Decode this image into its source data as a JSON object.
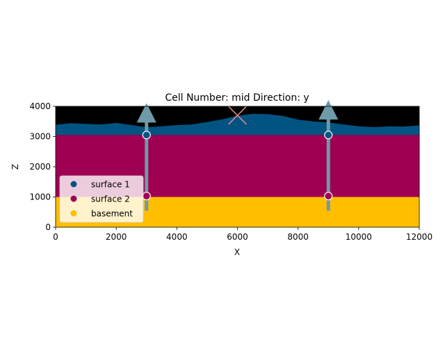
{
  "chart_data": {
    "type": "area",
    "title": "Cell Number: mid Direction: y",
    "xlabel": "X",
    "ylabel": "Z",
    "xlim": [
      0,
      12000
    ],
    "ylim": [
      0,
      4000
    ],
    "xticks": [
      0,
      2000,
      4000,
      6000,
      8000,
      10000,
      12000
    ],
    "yticks": [
      0,
      1000,
      2000,
      3000,
      4000
    ],
    "grid": false,
    "legend_position": "lower-left",
    "background_color": "#000000",
    "layers": [
      {
        "name": "surface 1",
        "color": "#015482",
        "bottom_z": 3050,
        "top_profile": {
          "x": [
            0,
            500,
            1000,
            1500,
            2000,
            2500,
            3000,
            3500,
            4000,
            4500,
            5000,
            5500,
            6000,
            6500,
            7000,
            7500,
            8000,
            8500,
            9000,
            9500,
            10000,
            10500,
            11000,
            11500,
            12000
          ],
          "z": [
            3390,
            3440,
            3420,
            3400,
            3450,
            3380,
            3310,
            3340,
            3380,
            3400,
            3480,
            3570,
            3690,
            3750,
            3740,
            3680,
            3560,
            3500,
            3470,
            3400,
            3340,
            3310,
            3340,
            3330,
            3370
          ]
        }
      },
      {
        "name": "surface 2",
        "color": "#9f0052",
        "bottom_z": 1000,
        "top_z": 3050
      },
      {
        "name": "basement",
        "color": "#ffbe00",
        "bottom_z": 0,
        "top_z": 1000
      }
    ],
    "wells": [
      {
        "x": 3000,
        "z_top": 3600,
        "z_bottom": 550
      },
      {
        "x": 9000,
        "z_top": 3700,
        "z_bottom": 550
      }
    ],
    "well_color": "#6f9aa8",
    "surface_points": [
      {
        "x": 3000,
        "z": 3050,
        "surface": "surface 1",
        "color": "#015482"
      },
      {
        "x": 9000,
        "z": 3050,
        "surface": "surface 1",
        "color": "#015482"
      },
      {
        "x": 3000,
        "z": 1030,
        "surface": "surface 2",
        "color": "#9f0052"
      },
      {
        "x": 9000,
        "z": 1030,
        "surface": "surface 2",
        "color": "#9f0052"
      }
    ],
    "marker": {
      "type": "cross",
      "x": 6000,
      "z": 3700,
      "color": "#e08a8a"
    },
    "legend": [
      {
        "label": "surface 1",
        "color": "#015482"
      },
      {
        "label": "surface 2",
        "color": "#9f0052"
      },
      {
        "label": "basement",
        "color": "#ffbe00"
      }
    ]
  }
}
